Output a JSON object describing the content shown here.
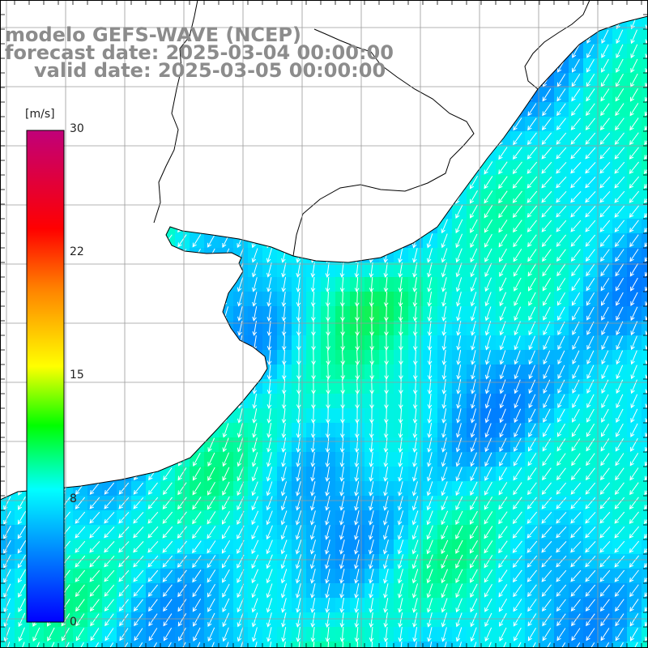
{
  "title": {
    "line1": "modelo GEFS-WAVE (NCEP)",
    "line2": "forecast date: 2025-03-04 00:00:00",
    "line3": "valid date: 2025-03-05 00:00:00"
  },
  "colorbar": {
    "unit": "[m/s]",
    "ticks": [
      {
        "label": "30",
        "value": 30
      },
      {
        "label": "22",
        "value": 22
      },
      {
        "label": "15",
        "value": 15
      },
      {
        "label": "8",
        "value": 8
      },
      {
        "label": "0",
        "value": 0
      }
    ],
    "range": [
      0,
      30
    ]
  },
  "colors": {
    "land": "#ffffff",
    "grid": "#9a9a9a",
    "coast": "#000000",
    "arrows": "#ffffff",
    "label_gray": "#8c8c8c"
  },
  "map": {
    "field": "wind speed",
    "typical_speed_ms": 8,
    "max_speed_ms": 13,
    "arrow_direction": "southward / south-southwest"
  }
}
